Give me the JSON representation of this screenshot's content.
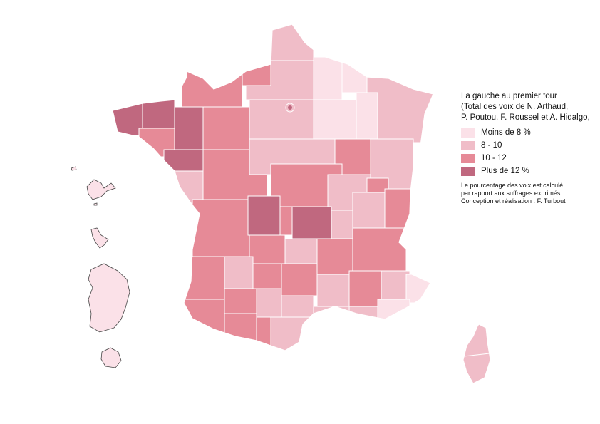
{
  "legend": {
    "title_lines": [
      "La gauche au premier tour",
      "(Total des voix de N. Arthaud,",
      "P. Poutou, F. Roussel et A. Hidalgo,"
    ],
    "classes": [
      {
        "label": "Moins de 8 %",
        "color": "#fbe1e8"
      },
      {
        "label": "8 - 10",
        "color": "#f0bdc8"
      },
      {
        "label": "10 - 12",
        "color": "#e68a97"
      },
      {
        "label": "Plus de 12 %",
        "color": "#c0687f"
      }
    ]
  },
  "notes": [
    "Le pourcentage des voix est calculé",
    "par rapport aux suffrages exprimés",
    "Conception et réalisation : F. Turbout"
  ],
  "colors": {
    "border": "#ffffff",
    "overseas_border": "#444444",
    "paris": "#c0687f"
  }
}
